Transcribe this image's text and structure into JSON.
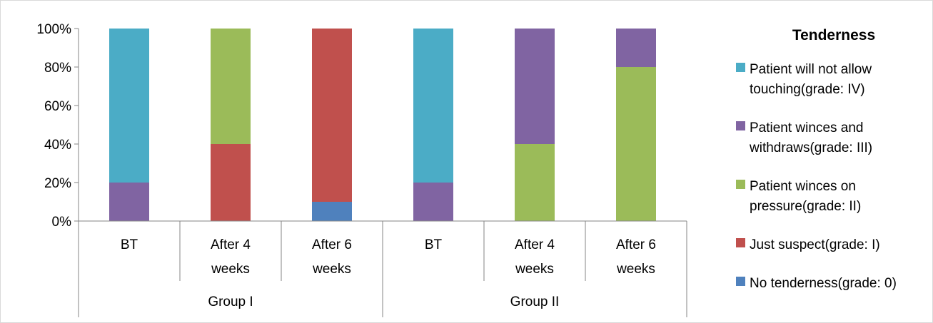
{
  "chart_data": {
    "type": "bar",
    "stacked": true,
    "percent": true,
    "title": "",
    "xlabel": "",
    "ylabel": "",
    "ylim": [
      0,
      100
    ],
    "yticks": [
      "0%",
      "20%",
      "40%",
      "60%",
      "80%",
      "100%"
    ],
    "categories": [
      {
        "line1": "BT",
        "line2": "",
        "group": "Group I"
      },
      {
        "line1": "After 4",
        "line2": "weeks",
        "group": "Group I"
      },
      {
        "line1": "After 6",
        "line2": "weeks",
        "group": "Group I"
      },
      {
        "line1": "BT",
        "line2": "",
        "group": "Group II"
      },
      {
        "line1": "After 4",
        "line2": "weeks",
        "group": "Group II"
      },
      {
        "line1": "After 6",
        "line2": "weeks",
        "group": "Group II"
      }
    ],
    "groups": [
      "Group I",
      "Group II"
    ],
    "legend_title": "Tenderness",
    "legend_position": "right",
    "series": [
      {
        "name": "No tenderness(grade: 0)",
        "legend_lines": [
          "No tenderness(grade: 0)"
        ],
        "color": "#4F81BD",
        "values": [
          0,
          0,
          10,
          0,
          0,
          0
        ]
      },
      {
        "name": "Just suspect(grade: I)",
        "legend_lines": [
          "Just suspect(grade: I)"
        ],
        "color": "#C0504D",
        "values": [
          0,
          40,
          90,
          0,
          0,
          0
        ]
      },
      {
        "name": "Patient winces on pressure(grade: II)",
        "legend_lines": [
          "Patient winces on",
          "pressure(grade: II)"
        ],
        "color": "#9BBB59",
        "values": [
          0,
          60,
          0,
          0,
          40,
          80
        ]
      },
      {
        "name": "Patient winces and withdraws(grade: III)",
        "legend_lines": [
          "Patient winces and",
          "withdraws(grade: III)"
        ],
        "color": "#8064A2",
        "values": [
          20,
          0,
          0,
          20,
          60,
          20
        ]
      },
      {
        "name": "Patient will not allow touching(grade: IV)",
        "legend_lines": [
          "Patient will not allow",
          "touching(grade: IV)"
        ],
        "color": "#4BACC6",
        "values": [
          80,
          0,
          0,
          80,
          0,
          0
        ]
      }
    ]
  }
}
